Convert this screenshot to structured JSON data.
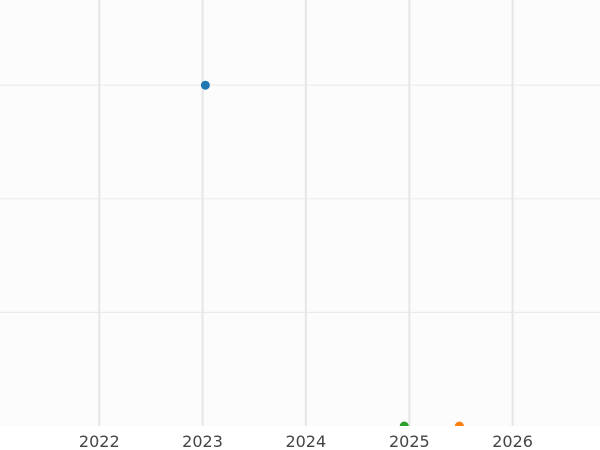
{
  "chart_data": {
    "type": "scatter",
    "title": "",
    "xlabel": "",
    "ylabel": "",
    "x_axis_type": "date",
    "xlim": [
      "2021-01-15",
      "2026-11-06"
    ],
    "ylim": [
      0,
      3.75
    ],
    "x_ticks": [
      "2022",
      "2023",
      "2024",
      "2025",
      "2026"
    ],
    "y_gridlines": [
      1,
      2,
      3
    ],
    "y_tick_labels_shown": false,
    "grid": true,
    "legend": "none",
    "points": [
      {
        "x": "2023-01-11",
        "y": 3,
        "color": "#1f77b4"
      },
      {
        "x": "2024-12-14",
        "y": 0,
        "color": "#2ca02c"
      },
      {
        "x": "2025-06-27",
        "y": 0,
        "color": "#ff7f0e"
      }
    ]
  }
}
